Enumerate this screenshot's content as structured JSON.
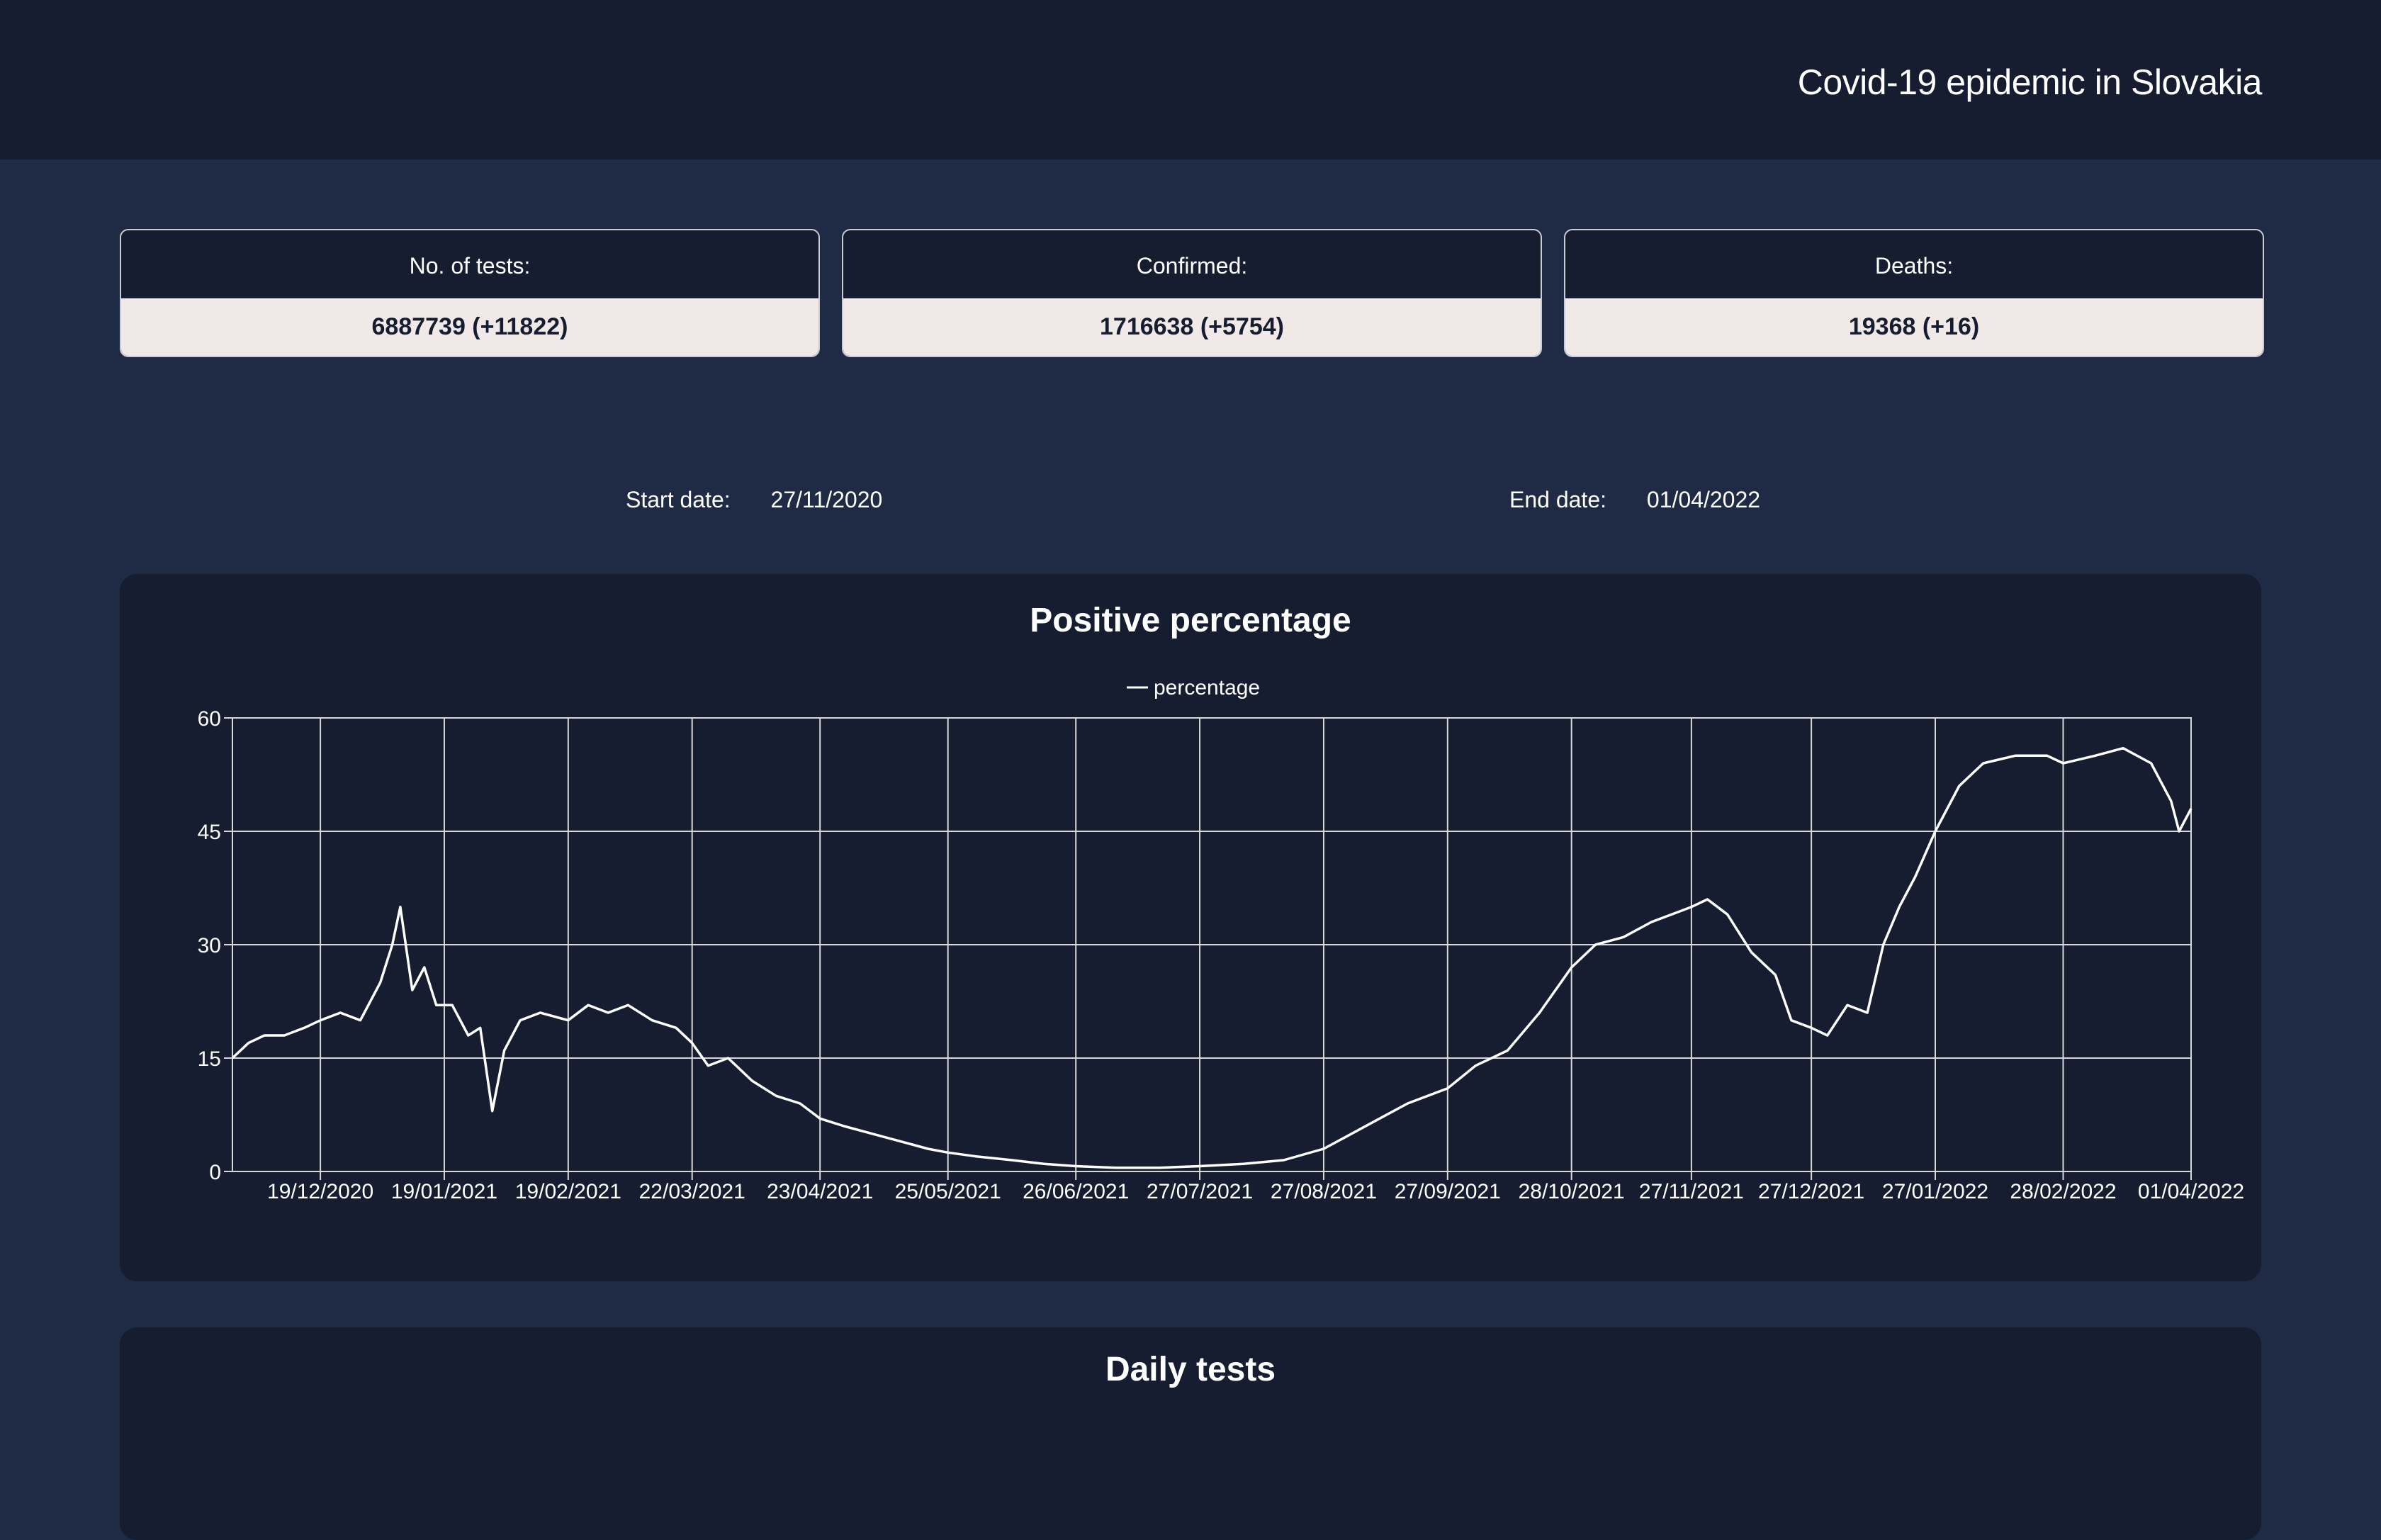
{
  "header": {
    "title": "Covid-19 epidemic in Slovakia"
  },
  "stats": [
    {
      "label": "No. of tests:",
      "value": "6887739 (+11822)"
    },
    {
      "label": "Confirmed:",
      "value": "1716638 (+5754)"
    },
    {
      "label": "Deaths:",
      "value": "19368 (+16)"
    }
  ],
  "filters": {
    "start_label": "Start date:",
    "start_value": "27/11/2020",
    "end_label": "End date:",
    "end_value": "01/04/2022"
  },
  "chart_data": {
    "type": "line",
    "title": "Positive percentage",
    "legend": [
      "percentage"
    ],
    "legend_position": "top-center",
    "grid": true,
    "x_range": [
      "27/11/2020",
      "01/04/2022"
    ],
    "ylim": [
      0,
      60
    ],
    "y_ticks": [
      0,
      15,
      30,
      45,
      60
    ],
    "x_ticks": [
      "19/12/2020",
      "19/01/2021",
      "19/02/2021",
      "22/03/2021",
      "23/04/2021",
      "25/05/2021",
      "26/06/2021",
      "27/07/2021",
      "27/08/2021",
      "27/09/2021",
      "28/10/2021",
      "27/11/2021",
      "27/12/2021",
      "27/01/2022",
      "28/02/2022",
      "01/04/2022"
    ],
    "series": [
      {
        "name": "percentage",
        "color": "#ffffff",
        "points": [
          [
            "27/11/2020",
            15
          ],
          [
            "01/12/2020",
            17
          ],
          [
            "05/12/2020",
            18
          ],
          [
            "10/12/2020",
            18
          ],
          [
            "15/12/2020",
            19
          ],
          [
            "19/12/2020",
            20
          ],
          [
            "24/12/2020",
            21
          ],
          [
            "29/12/2020",
            20
          ],
          [
            "03/01/2021",
            25
          ],
          [
            "06/01/2021",
            30
          ],
          [
            "08/01/2021",
            35
          ],
          [
            "11/01/2021",
            24
          ],
          [
            "14/01/2021",
            27
          ],
          [
            "17/01/2021",
            22
          ],
          [
            "21/01/2021",
            22
          ],
          [
            "25/01/2021",
            18
          ],
          [
            "28/01/2021",
            19
          ],
          [
            "31/01/2021",
            8
          ],
          [
            "03/02/2021",
            16
          ],
          [
            "07/02/2021",
            20
          ],
          [
            "12/02/2021",
            21
          ],
          [
            "19/02/2021",
            20
          ],
          [
            "24/02/2021",
            22
          ],
          [
            "01/03/2021",
            21
          ],
          [
            "06/03/2021",
            22
          ],
          [
            "12/03/2021",
            20
          ],
          [
            "18/03/2021",
            19
          ],
          [
            "22/03/2021",
            17
          ],
          [
            "26/03/2021",
            14
          ],
          [
            "31/03/2021",
            15
          ],
          [
            "06/04/2021",
            12
          ],
          [
            "12/04/2021",
            10
          ],
          [
            "18/04/2021",
            9
          ],
          [
            "23/04/2021",
            7
          ],
          [
            "29/04/2021",
            6
          ],
          [
            "06/05/2021",
            5
          ],
          [
            "13/05/2021",
            4
          ],
          [
            "20/05/2021",
            3
          ],
          [
            "25/05/2021",
            2.5
          ],
          [
            "01/06/2021",
            2
          ],
          [
            "10/06/2021",
            1.5
          ],
          [
            "18/06/2021",
            1
          ],
          [
            "26/06/2021",
            0.7
          ],
          [
            "06/07/2021",
            0.5
          ],
          [
            "17/07/2021",
            0.5
          ],
          [
            "27/07/2021",
            0.7
          ],
          [
            "07/08/2021",
            1
          ],
          [
            "17/08/2021",
            1.5
          ],
          [
            "27/08/2021",
            3
          ],
          [
            "03/09/2021",
            5
          ],
          [
            "10/09/2021",
            7
          ],
          [
            "17/09/2021",
            9
          ],
          [
            "27/09/2021",
            11
          ],
          [
            "04/10/2021",
            14
          ],
          [
            "12/10/2021",
            16
          ],
          [
            "20/10/2021",
            21
          ],
          [
            "28/10/2021",
            27
          ],
          [
            "03/11/2021",
            30
          ],
          [
            "10/11/2021",
            31
          ],
          [
            "17/11/2021",
            33
          ],
          [
            "27/11/2021",
            35
          ],
          [
            "01/12/2021",
            36
          ],
          [
            "06/12/2021",
            34
          ],
          [
            "12/12/2021",
            29
          ],
          [
            "18/12/2021",
            26
          ],
          [
            "22/12/2021",
            20
          ],
          [
            "27/12/2021",
            19
          ],
          [
            "31/12/2021",
            18
          ],
          [
            "05/01/2022",
            22
          ],
          [
            "10/01/2022",
            21
          ],
          [
            "14/01/2022",
            30
          ],
          [
            "18/01/2022",
            35
          ],
          [
            "22/01/2022",
            39
          ],
          [
            "27/01/2022",
            45
          ],
          [
            "02/02/2022",
            51
          ],
          [
            "08/02/2022",
            54
          ],
          [
            "16/02/2022",
            55
          ],
          [
            "24/02/2022",
            55
          ],
          [
            "28/02/2022",
            54
          ],
          [
            "08/03/2022",
            55
          ],
          [
            "15/03/2022",
            56
          ],
          [
            "22/03/2022",
            54
          ],
          [
            "27/03/2022",
            49
          ],
          [
            "29/03/2022",
            45
          ],
          [
            "01/04/2022",
            48
          ]
        ]
      }
    ]
  },
  "next_panel": {
    "title": "Daily tests"
  }
}
